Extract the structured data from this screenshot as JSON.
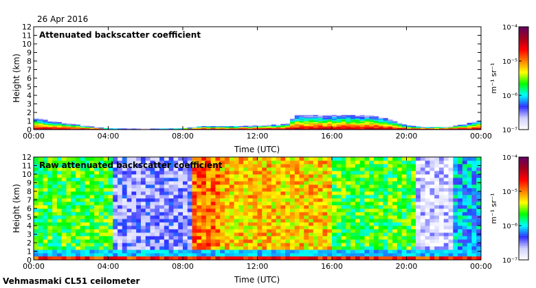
{
  "header": {
    "date": "26 Apr 2016"
  },
  "footer": {
    "instrument": "Vehmasmaki CL51 ceilometer"
  },
  "chart_data": [
    {
      "type": "heatmap",
      "title": "Attenuated backscatter coefficient",
      "xlabel": "Time (UTC)",
      "ylabel": "Height (km)",
      "x_ticks": [
        "00:00",
        "04:00",
        "08:00",
        "12:00",
        "16:00",
        "20:00",
        "00:00"
      ],
      "y_ticks": [
        "0",
        "1",
        "2",
        "3",
        "4",
        "5",
        "6",
        "7",
        "8",
        "9",
        "10",
        "11",
        "12"
      ],
      "xlim_hours": [
        0,
        24
      ],
      "ylim_km": [
        0,
        12
      ],
      "colorbar": {
        "unit_label": "m⁻¹ sr⁻¹",
        "ticks": [
          "10⁻⁴",
          "10⁻⁵",
          "10⁻⁶",
          "10⁻⁷"
        ],
        "scale": "log",
        "range": [
          1e-07,
          0.0001
        ]
      },
      "colormap": [
        "#ffffff",
        "#d0d0ff",
        "#3030ff",
        "#00ffff",
        "#00ff00",
        "#ffff00",
        "#ff8000",
        "#ff0000",
        "#a00020",
        "#600060"
      ],
      "boundary_layer_top_km": {
        "hours": [
          0,
          1,
          2,
          3,
          4,
          6,
          8,
          9,
          10,
          11,
          12,
          13,
          13.7,
          14,
          16,
          18,
          19,
          20,
          21,
          22,
          23,
          24
        ],
        "values": [
          1.4,
          1.0,
          0.7,
          0.4,
          0.15,
          0.1,
          0.15,
          0.4,
          0.4,
          0.4,
          0.5,
          0.6,
          0.7,
          1.7,
          1.7,
          1.7,
          1.3,
          0.5,
          0.3,
          0.3,
          0.6,
          1.1
        ]
      }
    },
    {
      "type": "heatmap",
      "title": "Raw attenuated backscatter coefficient",
      "xlabel": "Time (UTC)",
      "ylabel": "Height (km)",
      "x_ticks": [
        "00:00",
        "04:00",
        "08:00",
        "12:00",
        "16:00",
        "20:00",
        "00:00"
      ],
      "y_ticks": [
        "0",
        "1",
        "2",
        "3",
        "4",
        "5",
        "6",
        "7",
        "8",
        "9",
        "10",
        "11",
        "12"
      ],
      "xlim_hours": [
        0,
        24
      ],
      "ylim_km": [
        0,
        12
      ],
      "colorbar": {
        "unit_label": "m⁻¹ sr⁻¹",
        "ticks": [
          "10⁻⁴",
          "10⁻⁵",
          "10⁻⁶",
          "10⁻⁷"
        ],
        "scale": "log",
        "range": [
          1e-07,
          0.0001
        ]
      },
      "colormap": [
        "#ffffff",
        "#d0d0ff",
        "#3030ff",
        "#00ffff",
        "#00ff00",
        "#ffff00",
        "#ff8000",
        "#ff0000",
        "#a00020",
        "#600060"
      ],
      "background_segments": [
        {
          "start_hour": 0,
          "end_hour": 4.2,
          "level": 0.45
        },
        {
          "start_hour": 4.2,
          "end_hour": 8.3,
          "level": 0.15
        },
        {
          "start_hour": 8.3,
          "end_hour": 10,
          "level": 0.68
        },
        {
          "start_hour": 10,
          "end_hour": 16,
          "level": 0.6
        },
        {
          "start_hour": 16,
          "end_hour": 20.3,
          "level": 0.45
        },
        {
          "start_hour": 20.3,
          "end_hour": 22.5,
          "level": 0.08
        },
        {
          "start_hour": 22.5,
          "end_hour": 24,
          "level": 0.3
        }
      ]
    }
  ]
}
